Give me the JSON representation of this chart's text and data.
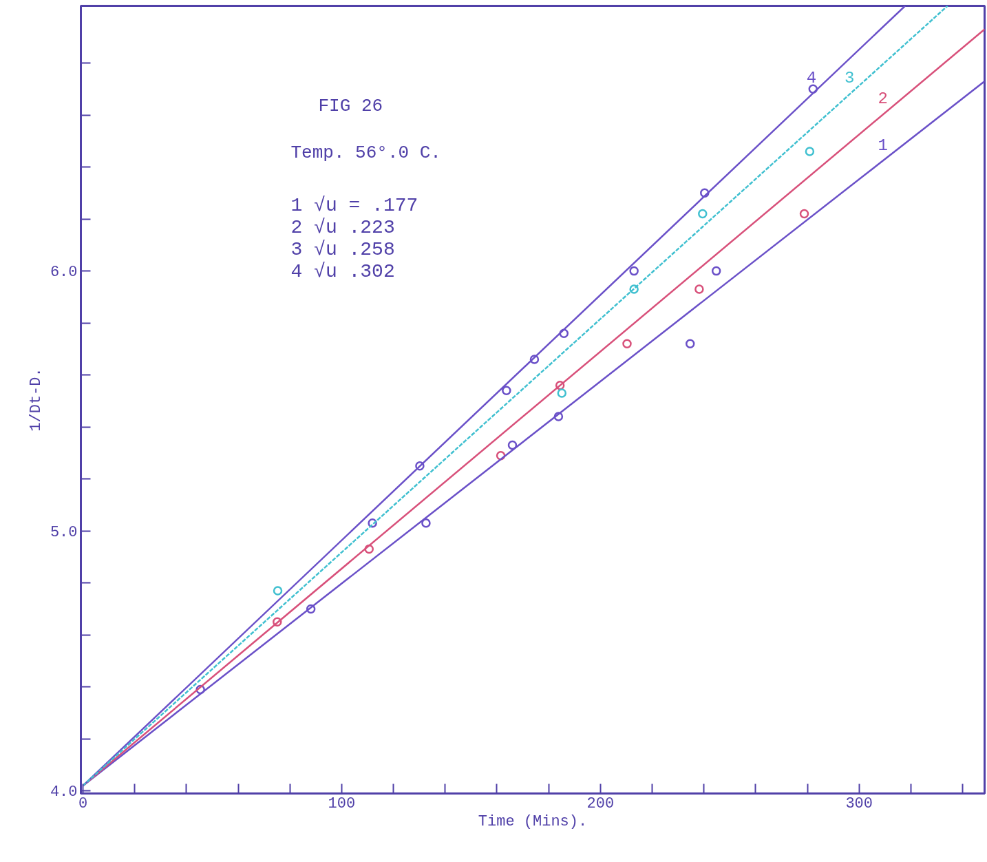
{
  "chart_data": {
    "type": "scatter",
    "title": "FIG 26",
    "subtitle": "Temp. 56°.0 C.",
    "xlabel": "Time (Mins).",
    "ylabel": "1/Dt-D.",
    "annotations": [
      "1 √u = .177",
      "2 √u .223",
      "3 √u .258",
      "4 √u .302"
    ],
    "xlim": [
      -0.8,
      348.5
    ],
    "ylim": [
      3.99,
      7.02
    ],
    "xticks": [
      0,
      {
        "value": 20,
        "label": null
      },
      {
        "value": 40,
        "label": null
      },
      {
        "value": 60,
        "label": null
      },
      {
        "value": 80,
        "label": null
      },
      100,
      {
        "value": 120,
        "label": null
      },
      {
        "value": 140,
        "label": null
      },
      {
        "value": 160,
        "label": null
      },
      {
        "value": 180,
        "label": null
      },
      200,
      {
        "value": 220,
        "label": null
      },
      {
        "value": 240,
        "label": null
      },
      {
        "value": 260,
        "label": null
      },
      {
        "value": 280,
        "label": null
      },
      300,
      {
        "value": 320,
        "label": null
      },
      {
        "value": 340,
        "label": null
      }
    ],
    "yticks": [
      {
        "value": 4.0,
        "label": "4.0"
      },
      {
        "value": 4.2,
        "label": null
      },
      {
        "value": 4.4,
        "label": null
      },
      {
        "value": 4.6,
        "label": null
      },
      {
        "value": 4.8,
        "label": null
      },
      {
        "value": 5.0,
        "label": "5.0"
      },
      {
        "value": 5.2,
        "label": null
      },
      {
        "value": 5.4,
        "label": null
      },
      {
        "value": 5.6,
        "label": null
      },
      {
        "value": 5.8,
        "label": null
      },
      {
        "value": 6.0,
        "label": "6.0"
      },
      {
        "value": 6.2,
        "label": null
      },
      {
        "value": 6.4,
        "label": null
      },
      {
        "value": 6.6,
        "label": null
      },
      {
        "value": 6.8,
        "label": null
      }
    ],
    "grid": false,
    "marker": "circle",
    "series": [
      {
        "color": "#6a50c8",
        "x": [
          45.4,
          88.1,
          132.6,
          166.0,
          183.8,
          234.7,
          244.8
        ],
        "values": [
          4.39,
          4.7,
          5.03,
          5.33,
          5.44,
          5.72,
          6.0
        ]
      },
      {
        "color": "#d8507a",
        "x": [
          75.1,
          110.6,
          161.5,
          184.4,
          210.3,
          238.2,
          278.8
        ],
        "values": [
          4.65,
          4.93,
          5.29,
          5.56,
          5.72,
          5.93,
          6.22
        ]
      },
      {
        "color": "#40c0d0",
        "x": [
          75.3,
          185.1,
          213.0,
          239.5,
          280.9
        ],
        "values": [
          4.77,
          5.53,
          5.93,
          6.22,
          6.46
        ]
      },
      {
        "color": "#6a50c8",
        "x": [
          111.9,
          130.2,
          163.7,
          174.5,
          185.9,
          213.0,
          240.3,
          282.2
        ],
        "values": [
          5.03,
          5.25,
          5.54,
          5.66,
          5.76,
          6.0,
          6.3,
          6.7
        ]
      },
      {
        "type": "line",
        "name": "1",
        "color": "#6a50c8",
        "x": [
          0,
          348.5
        ],
        "values": [
          4.02,
          6.73
        ],
        "line_style": "solid",
        "marker": "none"
      },
      {
        "type": "line",
        "name": "2",
        "color": "#d8507a",
        "x": [
          0,
          348.5
        ],
        "values": [
          4.02,
          6.93
        ],
        "line_style": "solid",
        "marker": "none"
      },
      {
        "type": "line",
        "name": "3",
        "color": "#40c0d0",
        "x": [
          0,
          334.2
        ],
        "values": [
          4.02,
          7.02
        ],
        "line_style": "dashed",
        "marker": "none"
      },
      {
        "type": "line",
        "name": "4",
        "color": "#6a50c8",
        "x": [
          0,
          317.8
        ],
        "values": [
          4.02,
          7.02
        ],
        "line_style": "solid",
        "marker": "none"
      }
    ]
  }
}
